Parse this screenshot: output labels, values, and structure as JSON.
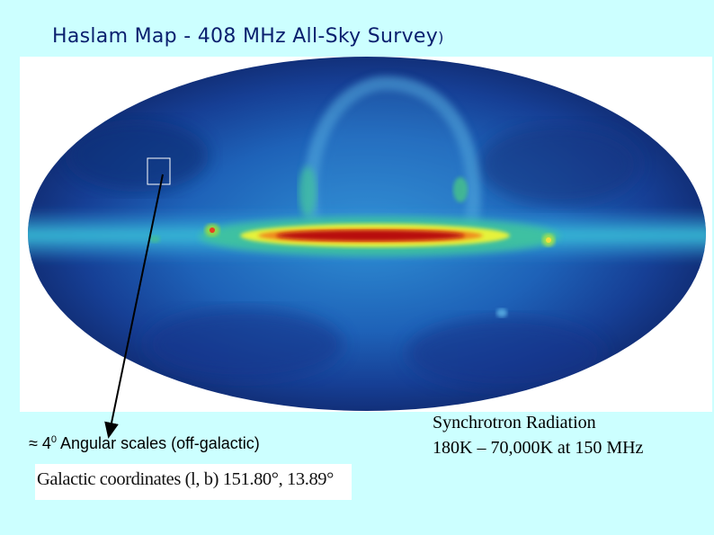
{
  "slide": {
    "title": "Haslam Map - 408 MHz All-Sky Survey",
    "title_paren": ")",
    "angular_prefix": "≈ 4",
    "angular_degree": "0",
    "angular_suffix": " Angular scales (off-galactic)",
    "coords_text": "Galactic coordinates (l, b) 151.80°, 13.89°",
    "synchrotron_line1": "Synchrotron Radiation",
    "synchrotron_line2": "180K – 70,000K at 150 MHz"
  },
  "colors": {
    "background": "#ccffff",
    "title": "#0a1f6e"
  }
}
